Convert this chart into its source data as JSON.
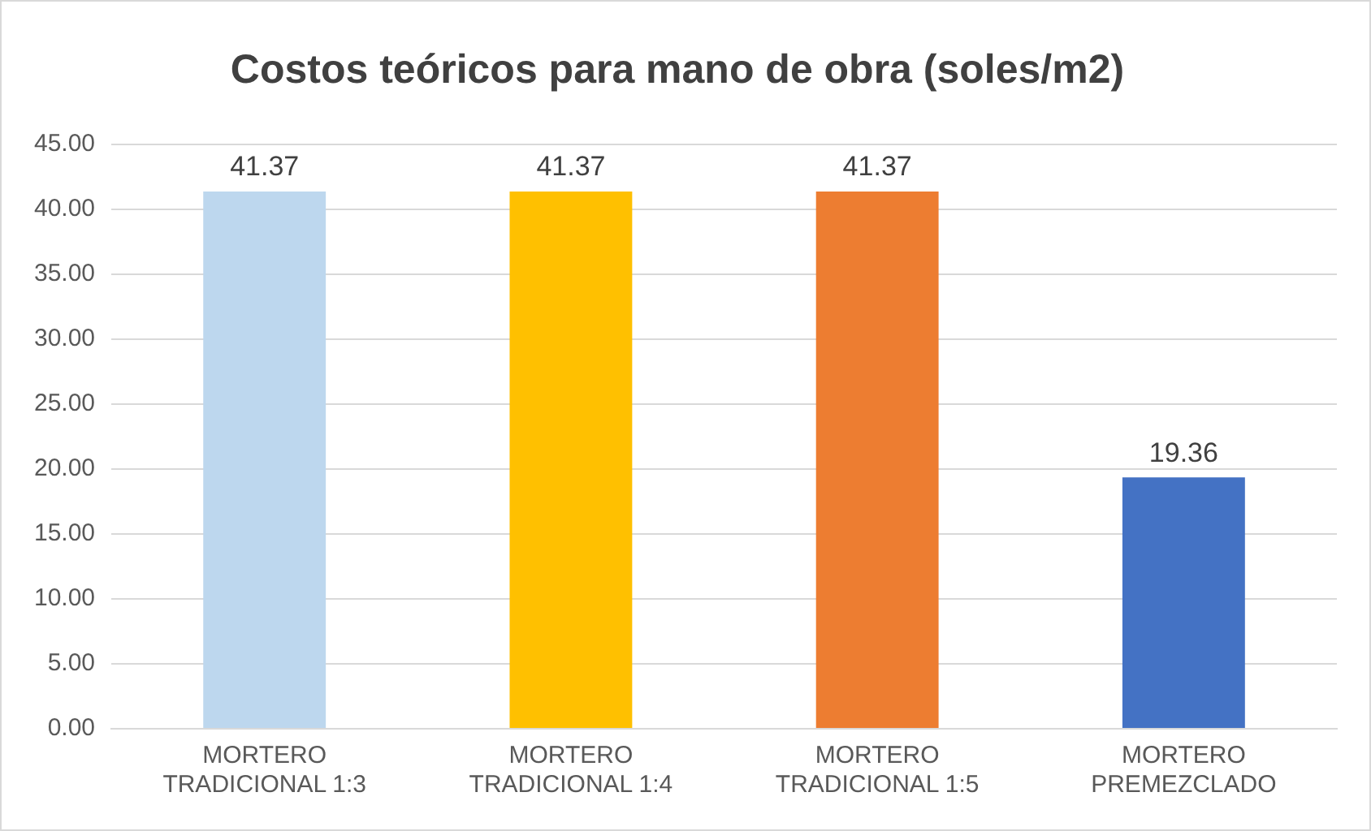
{
  "chart_data": {
    "type": "bar",
    "title": "Costos teóricos para mano de obra (soles/m2)",
    "categories": [
      "MORTERO TRADICIONAL 1:3",
      "MORTERO TRADICIONAL 1:4",
      "MORTERO TRADICIONAL 1:5",
      "MORTERO PREMEZCLADO"
    ],
    "values": [
      41.37,
      41.37,
      41.37,
      19.36
    ],
    "colors": [
      "#bdd7ee",
      "#ffc000",
      "#ed7d31",
      "#4472c4"
    ],
    "ylim": [
      0,
      45
    ],
    "yticks": [
      {
        "value": 0,
        "label": "0.00"
      },
      {
        "value": 5,
        "label": "5.00"
      },
      {
        "value": 10,
        "label": "10.00"
      },
      {
        "value": 15,
        "label": "15.00"
      },
      {
        "value": 20,
        "label": "20.00"
      },
      {
        "value": 25,
        "label": "25.00"
      },
      {
        "value": 30,
        "label": "30.00"
      },
      {
        "value": 35,
        "label": "35.00"
      },
      {
        "value": 40,
        "label": "40.00"
      },
      {
        "value": 45,
        "label": "45.00"
      }
    ],
    "grid": "y",
    "data_labels": true,
    "legend": false
  }
}
